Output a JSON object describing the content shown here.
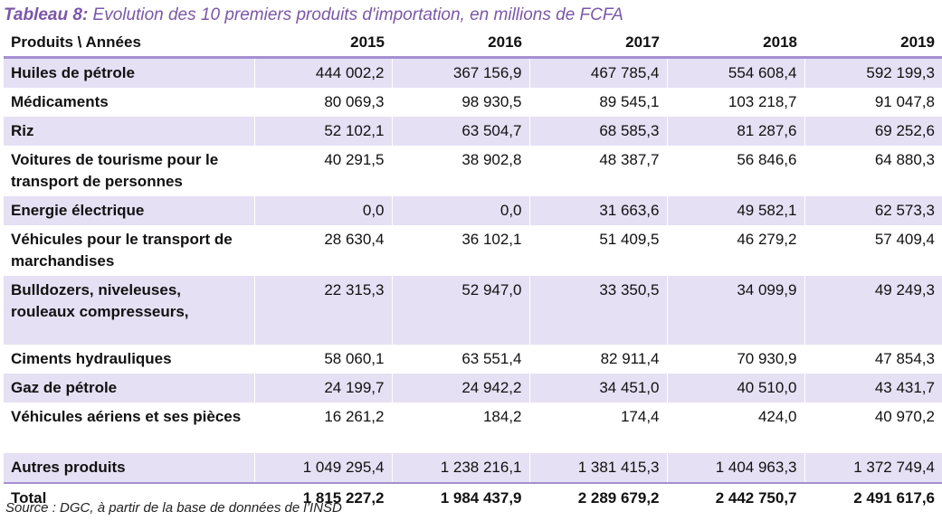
{
  "title": {
    "label": "Tableau 8:",
    "text": "Evolution des 10 premiers produits d'importation, en millions de FCFA"
  },
  "table": {
    "header": {
      "products": "Produits \\ Années",
      "years": [
        "2015",
        "2016",
        "2017",
        "2018",
        "2019"
      ]
    },
    "rows": [
      {
        "name": "Huiles de pétrole",
        "values": [
          "444 002,2",
          "367 156,9",
          "467 785,4",
          "554 608,4",
          "592 199,3"
        ]
      },
      {
        "name": "Médicaments",
        "values": [
          "80 069,3",
          "98 930,5",
          "89 545,1",
          "103 218,7",
          "91 047,8"
        ]
      },
      {
        "name": "Riz",
        "values": [
          "52 102,1",
          "63 504,7",
          "68 585,3",
          "81 287,6",
          "69 252,6"
        ]
      },
      {
        "name": "Voitures de tourisme pour le transport de personnes",
        "values": [
          "40 291,5",
          "38 902,8",
          "48 387,7",
          "56 846,6",
          "64 880,3"
        ]
      },
      {
        "name": "Energie électrique",
        "values": [
          "0,0",
          "0,0",
          "31 663,6",
          "49 582,1",
          "62 573,3"
        ]
      },
      {
        "name": "Véhicules pour le transport de marchandises",
        "values": [
          "28 630,4",
          "36 102,1",
          "51 409,5",
          "46 279,2",
          "57 409,4"
        ]
      },
      {
        "name": "Bulldozers, niveleuses, rouleaux compresseurs,",
        "values": [
          "22 315,3",
          "52 947,0",
          "33 350,5",
          "34 099,9",
          "49 249,3"
        ]
      },
      {
        "name": "Ciments hydrauliques",
        "values": [
          "58 060,1",
          "63 551,4",
          "82 911,4",
          "70 930,9",
          "47 854,3"
        ]
      },
      {
        "name": "Gaz de pétrole",
        "values": [
          "24 199,7",
          "24 942,2",
          "34 451,0",
          "40 510,0",
          "43 431,7"
        ]
      },
      {
        "name": "Véhicules aériens et ses pièces",
        "values": [
          "16 261,2",
          "184,2",
          "174,4",
          "424,0",
          "40 970,2"
        ]
      },
      {
        "name": "Autres produits",
        "values": [
          "1 049 295,4",
          "1 238 216,1",
          "1 381 415,3",
          "1 404 963,3",
          "1 372 749,4"
        ]
      }
    ],
    "total": {
      "name": "Total",
      "values": [
        "1 815 227,2",
        "1 984 437,9",
        "2 289 679,2",
        "2 442 750,7",
        "2 491 617,6"
      ]
    }
  },
  "source": "Source : DGC, à partir de la base de données de l’INSD",
  "colors": {
    "title": "#7b57a8",
    "row_shade": "#e6e0f4",
    "rule": "#a58fd1"
  }
}
